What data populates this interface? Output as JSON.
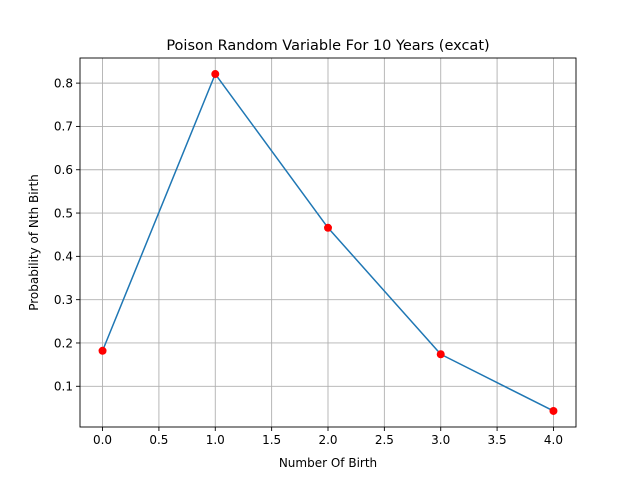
{
  "chart_data": {
    "type": "line",
    "title": "Poison Random Variable For 10 Years (excat)",
    "xlabel": "Number Of Birth",
    "ylabel": "Probability of Nth Birth",
    "xlim": [
      -0.2,
      4.2
    ],
    "ylim": [
      0.006,
      0.858
    ],
    "xticks": [
      0.0,
      0.5,
      1.0,
      1.5,
      2.0,
      2.5,
      3.0,
      3.5,
      4.0
    ],
    "xtick_labels": [
      "0.0",
      "0.5",
      "1.0",
      "1.5",
      "2.0",
      "2.5",
      "3.0",
      "3.5",
      "4.0"
    ],
    "yticks": [
      0.1,
      0.2,
      0.3,
      0.4,
      0.5,
      0.6,
      0.7,
      0.8
    ],
    "ytick_labels": [
      "0.1",
      "0.2",
      "0.3",
      "0.4",
      "0.5",
      "0.6",
      "0.7",
      "0.8"
    ],
    "grid": true,
    "series": [
      {
        "x": [
          0,
          1,
          2,
          3,
          4
        ],
        "y": [
          0.182,
          0.821,
          0.466,
          0.174,
          0.043
        ],
        "line_color": "#1f77b4",
        "marker_color": "#ff0000"
      }
    ]
  }
}
